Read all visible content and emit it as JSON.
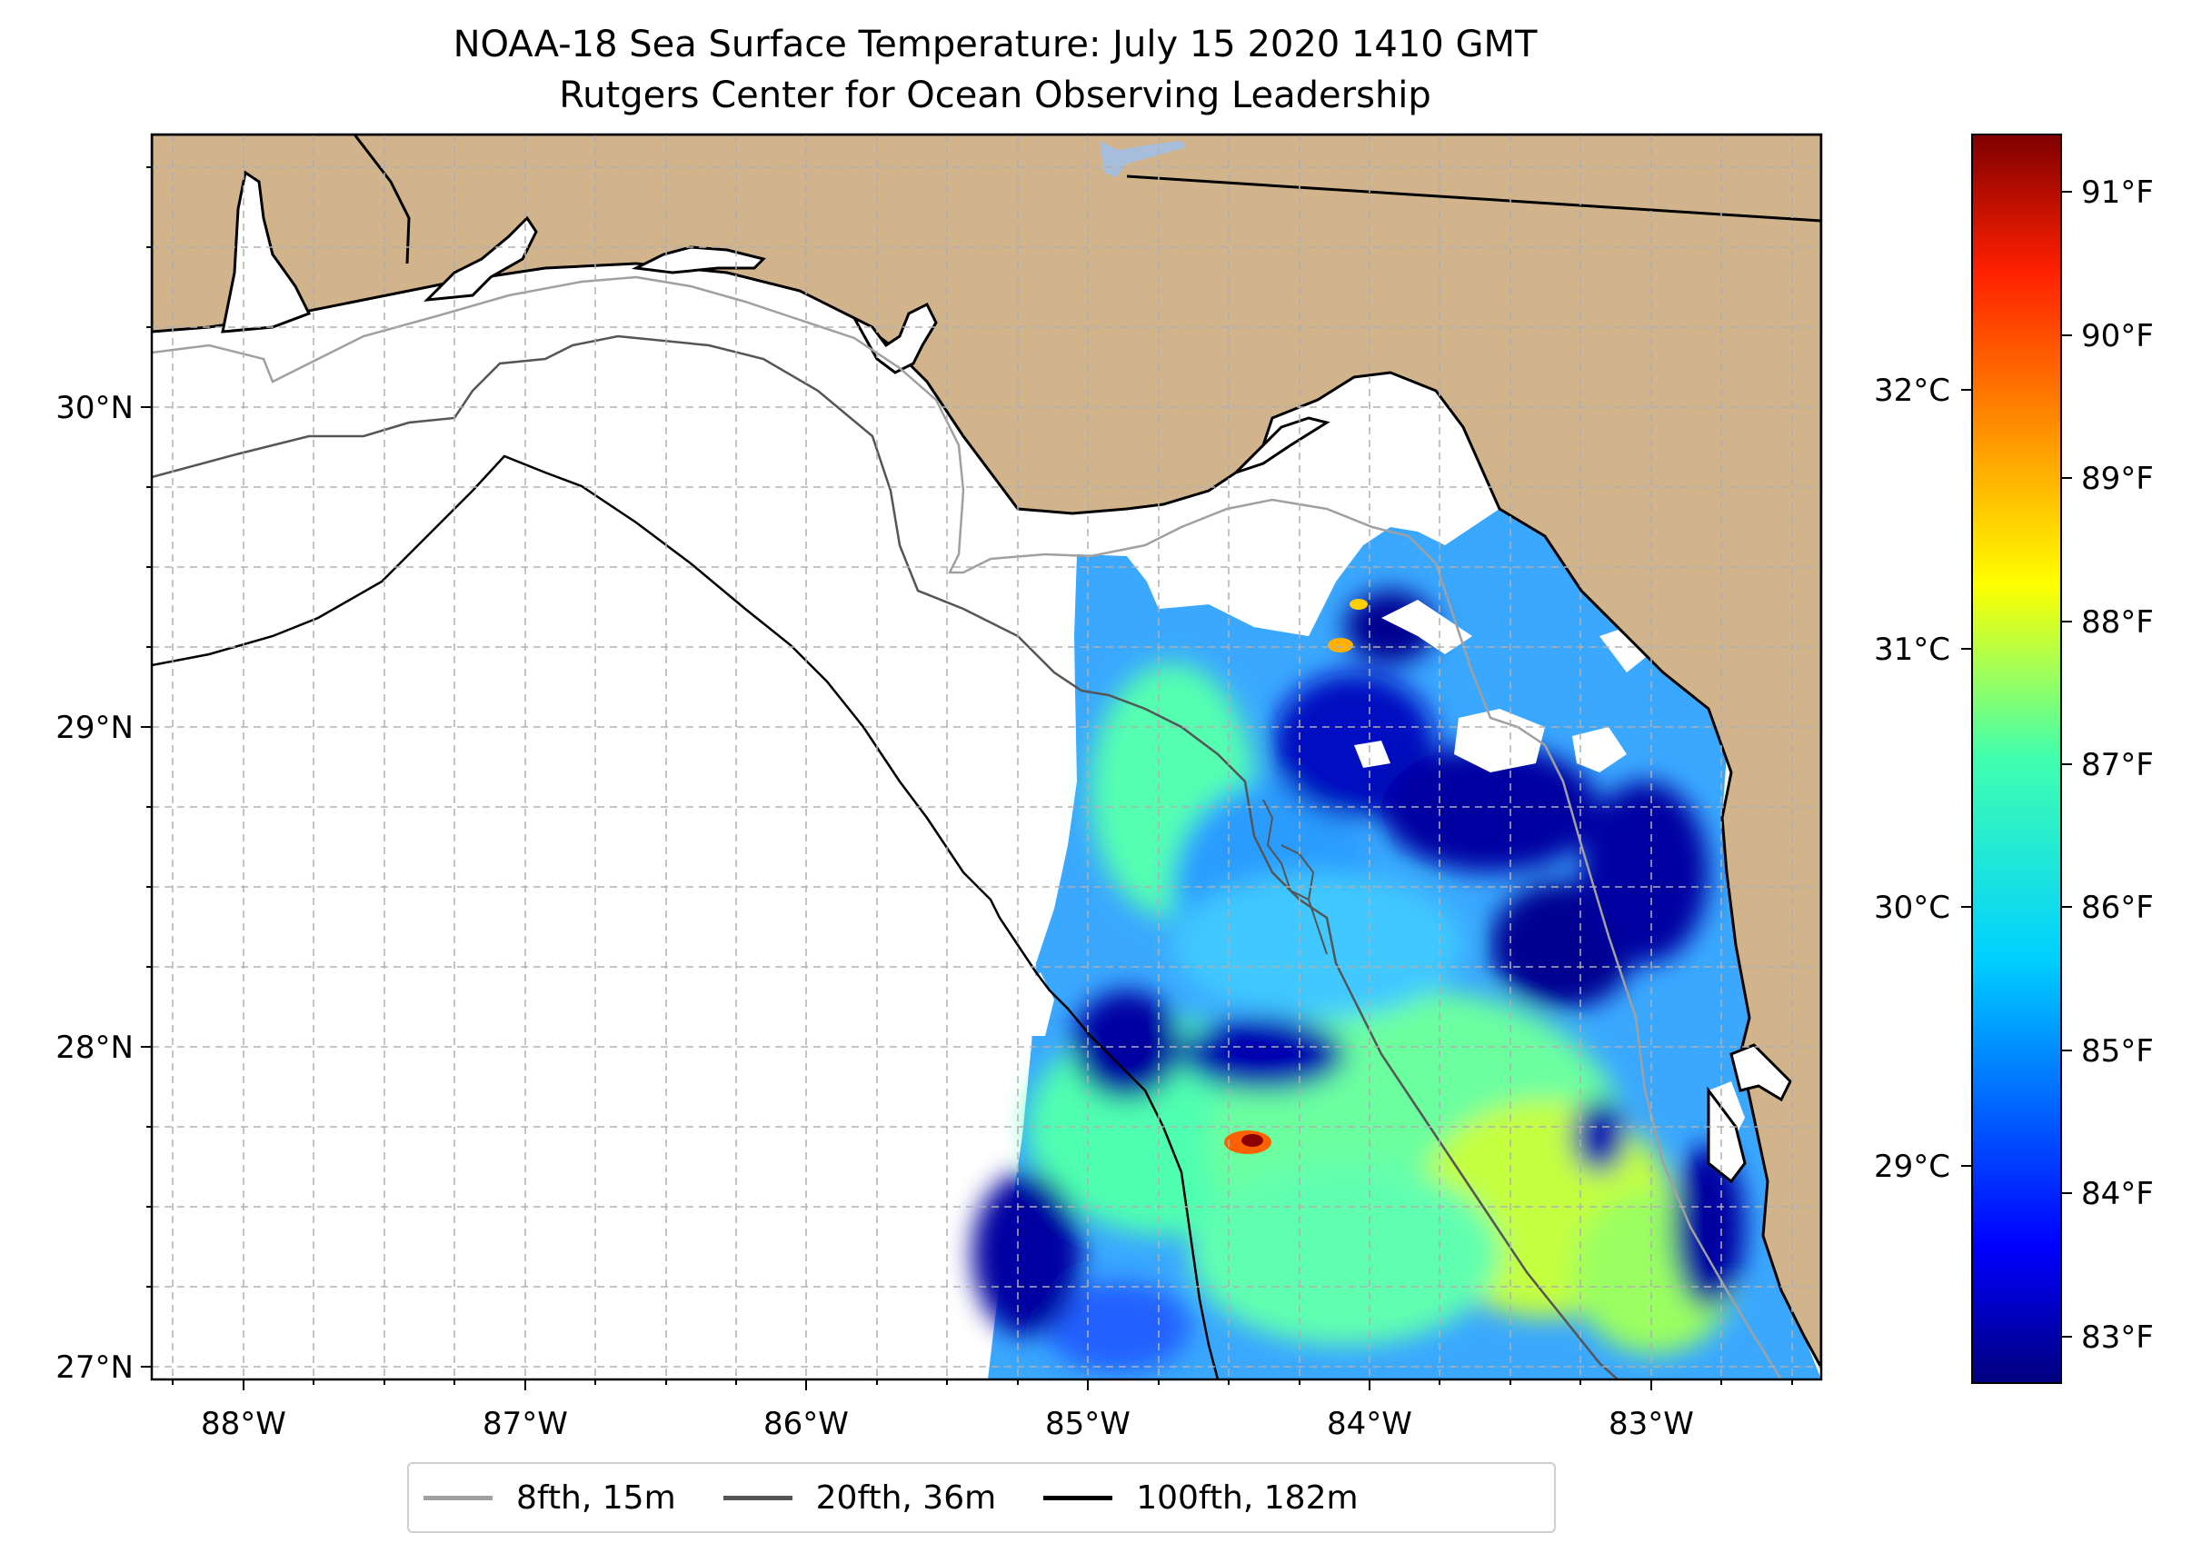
{
  "title": "NOAA-18 Sea Surface Temperature: July 15 2020 1410 GMT",
  "subtitle": "Rutgers Center for Ocean Observing Leadership",
  "map": {
    "lon_ticks": [
      "88°W",
      "87°W",
      "86°W",
      "85°W",
      "84°W",
      "83°W"
    ],
    "lat_ticks": [
      "30°N",
      "29°N",
      "28°N",
      "27°N"
    ],
    "land_color": "#d1b38c",
    "grid": "dashed"
  },
  "colorbar": {
    "colormap": "jet",
    "celsius_ticks": [
      "32°C",
      "31°C",
      "30°C",
      "29°C"
    ],
    "fahrenheit_ticks": [
      "91°F",
      "90°F",
      "89°F",
      "88°F",
      "87°F",
      "86°F",
      "85°F",
      "84°F",
      "83°F"
    ]
  },
  "legend": [
    {
      "label": "8fth, 15m",
      "color": "#a0a0a0"
    },
    {
      "label": "20fth, 36m",
      "color": "#555555"
    },
    {
      "label": "100fth, 182m",
      "color": "#000000"
    }
  ]
}
